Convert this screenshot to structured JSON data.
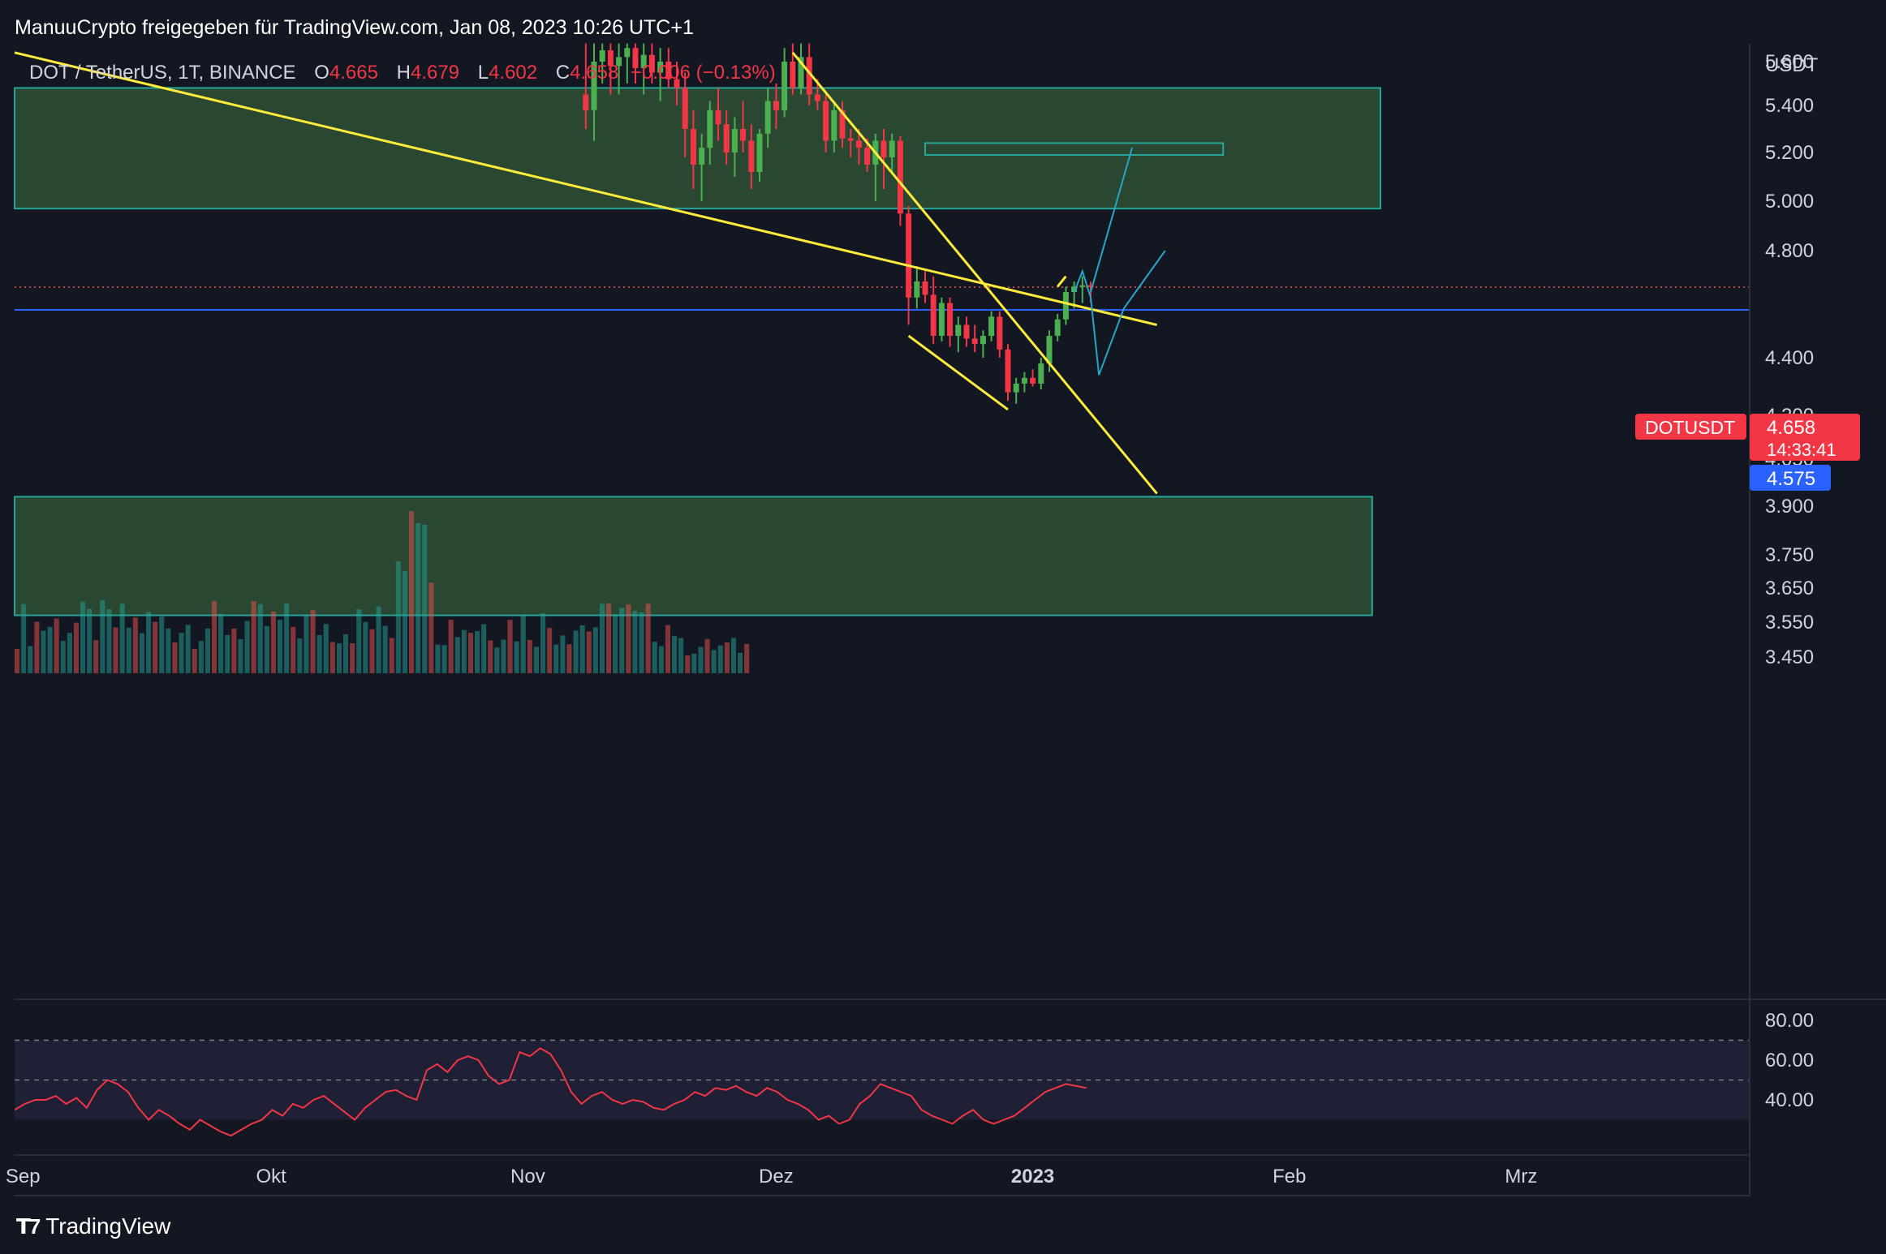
{
  "attribution": "ManuuCrypto freigegeben für TradingView.com, Jan 08, 2023 10:26 UTC+1",
  "legend": {
    "symbol": "DOT / TetherUS, 1T, BINANCE",
    "o_label": "O",
    "o_value": "4.665",
    "h_label": "H",
    "h_value": "4.679",
    "l_label": "L",
    "l_value": "4.602",
    "c_label": "C",
    "c_value": "4.658",
    "change": "−0.006 (−0.13%)"
  },
  "brand": "TradingView",
  "price_tag": {
    "symbol": "DOTUSDT",
    "price": "4.658",
    "countdown": "14:33:41"
  },
  "level_tag": "4.575",
  "colors": {
    "bg": "#131722",
    "up": "#26a69a",
    "down": "#ef5350",
    "zone": "#2a4a33",
    "trend": "#ffeb3b",
    "projection": "#26a5c8",
    "level": "#2962ff",
    "rsi": "#f23645"
  },
  "chart_data": {
    "type": "candlestick",
    "symbol": "DOT / TetherUS",
    "timeframe": "1T",
    "exchange": "BINANCE",
    "y_unit": "USDT",
    "y_ticks": [
      "5.600",
      "5.400",
      "5.200",
      "5.000",
      "4.800",
      "4.400",
      "4.200",
      "4.050",
      "3.900",
      "3.750",
      "3.650",
      "3.550",
      "3.450"
    ],
    "x_ticks": [
      "Sep",
      "Okt",
      "Nov",
      "Dez",
      "2023",
      "Feb",
      "Mrz"
    ],
    "price_range": [
      3.42,
      5.68
    ],
    "current_price": 4.658,
    "horizontal_level": 4.575,
    "zones": [
      {
        "from": "2022-08-31",
        "to": "2023-02-12",
        "low": 4.97,
        "high": 5.48
      },
      {
        "from": "2022-08-31",
        "to": "2023-02-11",
        "low": 3.57,
        "high": 3.93
      },
      {
        "from": "2022-12-19",
        "to": "2023-01-24",
        "low": 5.19,
        "high": 5.24
      }
    ],
    "candles": [
      {
        "date": "2022-11-08",
        "o": 5.45,
        "h": 5.68,
        "l": 5.3,
        "c": 5.38
      },
      {
        "date": "2022-11-09",
        "o": 5.38,
        "h": 5.68,
        "l": 5.25,
        "c": 5.6
      },
      {
        "date": "2022-11-10",
        "o": 5.6,
        "h": 5.68,
        "l": 5.5,
        "c": 5.65
      },
      {
        "date": "2022-11-11",
        "o": 5.65,
        "h": 5.68,
        "l": 5.45,
        "c": 5.58
      },
      {
        "date": "2022-11-12",
        "o": 5.58,
        "h": 5.68,
        "l": 5.45,
        "c": 5.62
      },
      {
        "date": "2022-11-13",
        "o": 5.62,
        "h": 5.68,
        "l": 5.5,
        "c": 5.66
      },
      {
        "date": "2022-11-14",
        "o": 5.66,
        "h": 5.68,
        "l": 5.5,
        "c": 5.57
      },
      {
        "date": "2022-11-15",
        "o": 5.57,
        "h": 5.68,
        "l": 5.45,
        "c": 5.63
      },
      {
        "date": "2022-11-16",
        "o": 5.63,
        "h": 5.68,
        "l": 5.5,
        "c": 5.55
      },
      {
        "date": "2022-11-17",
        "o": 5.55,
        "h": 5.66,
        "l": 5.42,
        "c": 5.6
      },
      {
        "date": "2022-11-18",
        "o": 5.6,
        "h": 5.66,
        "l": 5.48,
        "c": 5.52
      },
      {
        "date": "2022-11-19",
        "o": 5.52,
        "h": 5.6,
        "l": 5.4,
        "c": 5.48
      },
      {
        "date": "2022-11-20",
        "o": 5.48,
        "h": 5.55,
        "l": 5.18,
        "c": 5.3
      },
      {
        "date": "2022-11-21",
        "o": 5.3,
        "h": 5.38,
        "l": 5.05,
        "c": 5.15
      },
      {
        "date": "2022-11-22",
        "o": 5.15,
        "h": 5.28,
        "l": 5.0,
        "c": 5.22
      },
      {
        "date": "2022-11-23",
        "o": 5.22,
        "h": 5.42,
        "l": 5.15,
        "c": 5.38
      },
      {
        "date": "2022-11-24",
        "o": 5.38,
        "h": 5.48,
        "l": 5.25,
        "c": 5.32
      },
      {
        "date": "2022-11-25",
        "o": 5.32,
        "h": 5.38,
        "l": 5.15,
        "c": 5.2
      },
      {
        "date": "2022-11-26",
        "o": 5.2,
        "h": 5.35,
        "l": 5.1,
        "c": 5.3
      },
      {
        "date": "2022-11-27",
        "o": 5.3,
        "h": 5.42,
        "l": 5.2,
        "c": 5.25
      },
      {
        "date": "2022-11-28",
        "o": 5.25,
        "h": 5.32,
        "l": 5.05,
        "c": 5.12
      },
      {
        "date": "2022-11-29",
        "o": 5.12,
        "h": 5.3,
        "l": 5.08,
        "c": 5.28
      },
      {
        "date": "2022-11-30",
        "o": 5.28,
        "h": 5.48,
        "l": 5.22,
        "c": 5.42
      },
      {
        "date": "2022-12-01",
        "o": 5.42,
        "h": 5.5,
        "l": 5.3,
        "c": 5.38
      },
      {
        "date": "2022-12-02",
        "o": 5.38,
        "h": 5.66,
        "l": 5.35,
        "c": 5.6
      },
      {
        "date": "2022-12-03",
        "o": 5.6,
        "h": 5.68,
        "l": 5.45,
        "c": 5.48
      },
      {
        "date": "2022-12-04",
        "o": 5.48,
        "h": 5.68,
        "l": 5.45,
        "c": 5.62
      },
      {
        "date": "2022-12-05",
        "o": 5.62,
        "h": 5.68,
        "l": 5.4,
        "c": 5.45
      },
      {
        "date": "2022-12-06",
        "o": 5.45,
        "h": 5.52,
        "l": 5.38,
        "c": 5.42
      },
      {
        "date": "2022-12-07",
        "o": 5.42,
        "h": 5.45,
        "l": 5.2,
        "c": 5.25
      },
      {
        "date": "2022-12-08",
        "o": 5.25,
        "h": 5.42,
        "l": 5.2,
        "c": 5.38
      },
      {
        "date": "2022-12-09",
        "o": 5.38,
        "h": 5.42,
        "l": 5.22,
        "c": 5.26
      },
      {
        "date": "2022-12-10",
        "o": 5.26,
        "h": 5.3,
        "l": 5.18,
        "c": 5.25
      },
      {
        "date": "2022-12-11",
        "o": 5.25,
        "h": 5.3,
        "l": 5.15,
        "c": 5.22
      },
      {
        "date": "2022-12-12",
        "o": 5.22,
        "h": 5.26,
        "l": 5.12,
        "c": 5.15
      },
      {
        "date": "2022-12-13",
        "o": 5.15,
        "h": 5.28,
        "l": 5.0,
        "c": 5.25
      },
      {
        "date": "2022-12-14",
        "o": 5.25,
        "h": 5.3,
        "l": 5.05,
        "c": 5.18
      },
      {
        "date": "2022-12-15",
        "o": 5.18,
        "h": 5.28,
        "l": 5.12,
        "c": 5.25
      },
      {
        "date": "2022-12-16",
        "o": 5.25,
        "h": 5.27,
        "l": 4.9,
        "c": 4.95
      },
      {
        "date": "2022-12-17",
        "o": 4.95,
        "h": 4.98,
        "l": 4.52,
        "c": 4.62
      },
      {
        "date": "2022-12-18",
        "o": 4.62,
        "h": 4.74,
        "l": 4.58,
        "c": 4.68
      },
      {
        "date": "2022-12-19",
        "o": 4.68,
        "h": 4.72,
        "l": 4.6,
        "c": 4.63
      },
      {
        "date": "2022-12-20",
        "o": 4.63,
        "h": 4.7,
        "l": 4.45,
        "c": 4.48
      },
      {
        "date": "2022-12-21",
        "o": 4.48,
        "h": 4.62,
        "l": 4.46,
        "c": 4.6
      },
      {
        "date": "2022-12-22",
        "o": 4.6,
        "h": 4.62,
        "l": 4.44,
        "c": 4.48
      },
      {
        "date": "2022-12-23",
        "o": 4.48,
        "h": 4.55,
        "l": 4.42,
        "c": 4.52
      },
      {
        "date": "2022-12-24",
        "o": 4.52,
        "h": 4.55,
        "l": 4.44,
        "c": 4.47
      },
      {
        "date": "2022-12-25",
        "o": 4.47,
        "h": 4.52,
        "l": 4.42,
        "c": 4.45
      },
      {
        "date": "2022-12-26",
        "o": 4.45,
        "h": 4.5,
        "l": 4.4,
        "c": 4.48
      },
      {
        "date": "2022-12-27",
        "o": 4.48,
        "h": 4.57,
        "l": 4.46,
        "c": 4.55
      },
      {
        "date": "2022-12-28",
        "o": 4.55,
        "h": 4.57,
        "l": 4.4,
        "c": 4.43
      },
      {
        "date": "2022-12-29",
        "o": 4.43,
        "h": 4.45,
        "l": 4.25,
        "c": 4.28
      },
      {
        "date": "2022-12-30",
        "o": 4.28,
        "h": 4.33,
        "l": 4.24,
        "c": 4.31
      },
      {
        "date": "2022-12-31",
        "o": 4.31,
        "h": 4.35,
        "l": 4.28,
        "c": 4.33
      },
      {
        "date": "2023-01-01",
        "o": 4.33,
        "h": 4.36,
        "l": 4.3,
        "c": 4.31
      },
      {
        "date": "2023-01-02",
        "o": 4.31,
        "h": 4.4,
        "l": 4.29,
        "c": 4.38
      },
      {
        "date": "2023-01-03",
        "o": 4.38,
        "h": 4.5,
        "l": 4.35,
        "c": 4.48
      },
      {
        "date": "2023-01-04",
        "o": 4.48,
        "h": 4.56,
        "l": 4.46,
        "c": 4.54
      },
      {
        "date": "2023-01-05",
        "o": 4.54,
        "h": 4.66,
        "l": 4.52,
        "c": 4.64
      },
      {
        "date": "2023-01-06",
        "o": 4.64,
        "h": 4.68,
        "l": 4.58,
        "c": 4.66
      },
      {
        "date": "2023-01-07",
        "o": 4.66,
        "h": 4.7,
        "l": 4.6,
        "c": 4.665
      },
      {
        "date": "2023-01-08",
        "o": 4.665,
        "h": 4.679,
        "l": 4.602,
        "c": 4.658
      }
    ],
    "volume_bars": 112,
    "rsi": {
      "upper_band": 70,
      "lower_band": 30,
      "y_ticks": [
        "80.00",
        "60.00",
        "40.00"
      ],
      "values": [
        35,
        38,
        40,
        40,
        42,
        38,
        41,
        36,
        45,
        50,
        48,
        44,
        36,
        30,
        35,
        32,
        28,
        25,
        30,
        27,
        24,
        22,
        25,
        28,
        30,
        35,
        32,
        38,
        36,
        40,
        42,
        38,
        34,
        30,
        36,
        40,
        44,
        45,
        42,
        40,
        55,
        58,
        54,
        60,
        62,
        60,
        52,
        48,
        50,
        64,
        62,
        66,
        63,
        55,
        44,
        38,
        42,
        44,
        40,
        38,
        40,
        39,
        36,
        35,
        38,
        40,
        44,
        42,
        46,
        45,
        47,
        44,
        42,
        46,
        44,
        40,
        38,
        35,
        30,
        32,
        28,
        30,
        38,
        42,
        48,
        46,
        44,
        42,
        35,
        32,
        30,
        28,
        32,
        35,
        30,
        28,
        30,
        32,
        36,
        40,
        44,
        46,
        48,
        47,
        46
      ]
    }
  },
  "drawings": {
    "trend_lines": [
      {
        "from": [
          "2022-08-31",
          5.64
        ],
        "to": [
          "2023-01-16",
          4.52
        ]
      },
      {
        "from": [
          "2022-12-03",
          5.64
        ],
        "to": [
          "2023-01-16",
          3.94
        ]
      },
      {
        "from": [
          "2022-12-17",
          4.48
        ],
        "to": [
          "2022-12-29",
          4.22
        ]
      },
      {
        "from": [
          "2023-01-04",
          4.66
        ],
        "to": [
          "2023-01-05",
          4.7
        ]
      }
    ],
    "projections": [
      {
        "points": [
          [
            "2023-01-06",
            4.64
          ],
          [
            "2023-01-07",
            4.72
          ],
          [
            "2023-01-08",
            4.62
          ],
          [
            "2023-01-09",
            4.34
          ],
          [
            "2023-01-12",
            4.58
          ],
          [
            "2023-01-17",
            4.8
          ]
        ]
      },
      {
        "points": [
          [
            "2023-01-08",
            4.64
          ],
          [
            "2023-01-13",
            5.22
          ]
        ]
      }
    ]
  }
}
